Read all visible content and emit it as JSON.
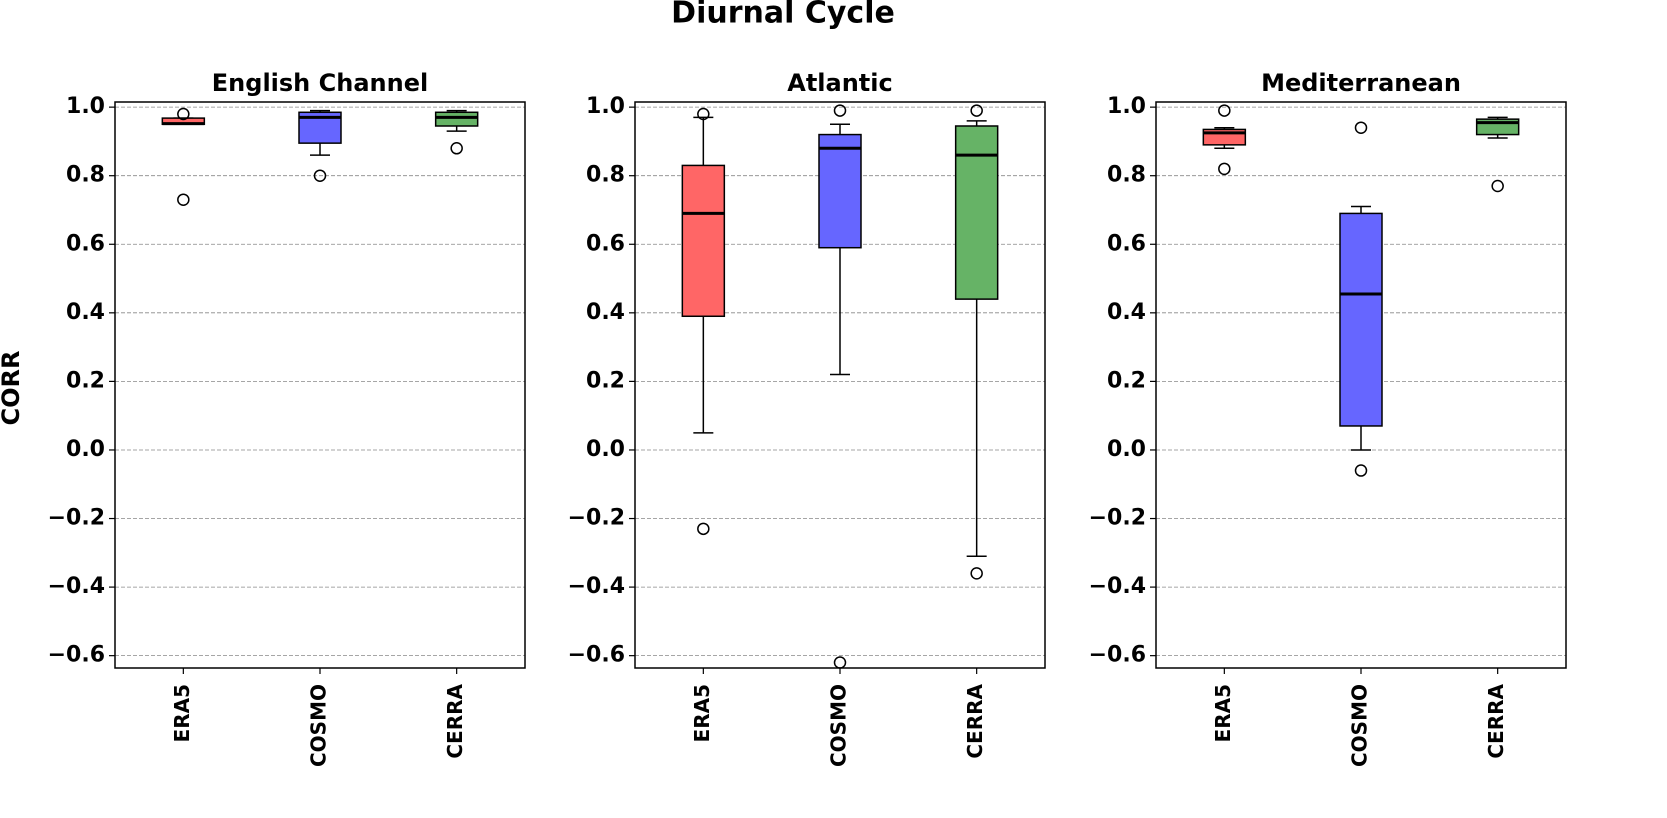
{
  "title": "Diurnal Cycle",
  "ylabel": "CORR",
  "chart_data": [
    {
      "type": "box",
      "title": "English Channel",
      "categories": [
        "ERA5",
        "COSMO",
        "CERRA"
      ],
      "colors": [
        "#ff6666",
        "#6666ff",
        "#66b366"
      ],
      "boxes": [
        {
          "whislo": 0.95,
          "q1": 0.95,
          "med": 0.952,
          "q3": 0.968,
          "whishi": 0.968,
          "fliers": [
            0.98,
            0.73
          ]
        },
        {
          "whislo": 0.86,
          "q1": 0.895,
          "med": 0.97,
          "q3": 0.985,
          "whishi": 0.99,
          "fliers": [
            0.8
          ]
        },
        {
          "whislo": 0.93,
          "q1": 0.945,
          "med": 0.97,
          "q3": 0.985,
          "whishi": 0.99,
          "fliers": [
            0.88
          ]
        }
      ],
      "ylim": [
        -0.636,
        1.015
      ],
      "grid": true,
      "yticks": [
        {
          "value": -0.6,
          "label": "−0.6"
        },
        {
          "value": -0.4,
          "label": "−0.4"
        },
        {
          "value": -0.2,
          "label": "−0.2"
        },
        {
          "value": 0,
          "label": "0.0"
        },
        0.2,
        0.4,
        0.6,
        0.8,
        {
          "value": 1,
          "label": "1.0"
        }
      ]
    },
    {
      "type": "box",
      "title": "Atlantic",
      "categories": [
        "ERA5",
        "COSMO",
        "CERRA"
      ],
      "colors": [
        "#ff6666",
        "#6666ff",
        "#66b366"
      ],
      "boxes": [
        {
          "whislo": 0.05,
          "q1": 0.39,
          "med": 0.69,
          "q3": 0.83,
          "whishi": 0.97,
          "fliers": [
            0.98,
            -0.23
          ]
        },
        {
          "whislo": 0.22,
          "q1": 0.59,
          "med": 0.88,
          "q3": 0.92,
          "whishi": 0.95,
          "fliers": [
            0.99,
            -0.62
          ]
        },
        {
          "whislo": -0.31,
          "q1": 0.44,
          "med": 0.86,
          "q3": 0.945,
          "whishi": 0.96,
          "fliers": [
            0.99,
            -0.36
          ]
        }
      ],
      "ylim": [
        -0.636,
        1.015
      ],
      "grid": true,
      "yticks": [
        {
          "value": -0.6,
          "label": "−0.6"
        },
        {
          "value": -0.4,
          "label": "−0.4"
        },
        {
          "value": -0.2,
          "label": "−0.2"
        },
        {
          "value": 0,
          "label": "0.0"
        },
        0.2,
        0.4,
        0.6,
        0.8,
        {
          "value": 1,
          "label": "1.0"
        }
      ]
    },
    {
      "type": "box",
      "title": "Mediterranean",
      "categories": [
        "ERA5",
        "COSMO",
        "CERRA"
      ],
      "colors": [
        "#ff6666",
        "#6666ff",
        "#66b366"
      ],
      "boxes": [
        {
          "whislo": 0.88,
          "q1": 0.89,
          "med": 0.925,
          "q3": 0.935,
          "whishi": 0.94,
          "fliers": [
            0.99,
            0.82
          ]
        },
        {
          "whislo": 0.0,
          "q1": 0.07,
          "med": 0.455,
          "q3": 0.69,
          "whishi": 0.71,
          "fliers": [
            0.94,
            -0.06
          ]
        },
        {
          "whislo": 0.91,
          "q1": 0.92,
          "med": 0.955,
          "q3": 0.965,
          "whishi": 0.97,
          "fliers": [
            0.77
          ]
        }
      ],
      "ylim": [
        -0.636,
        1.015
      ],
      "grid": true,
      "yticks": [
        {
          "value": -0.6,
          "label": "−0.6"
        },
        {
          "value": -0.4,
          "label": "−0.4"
        },
        {
          "value": -0.2,
          "label": "−0.2"
        },
        {
          "value": 0,
          "label": "0.0"
        },
        0.2,
        0.4,
        0.6,
        0.8,
        {
          "value": 1,
          "label": "1.0"
        }
      ]
    }
  ]
}
